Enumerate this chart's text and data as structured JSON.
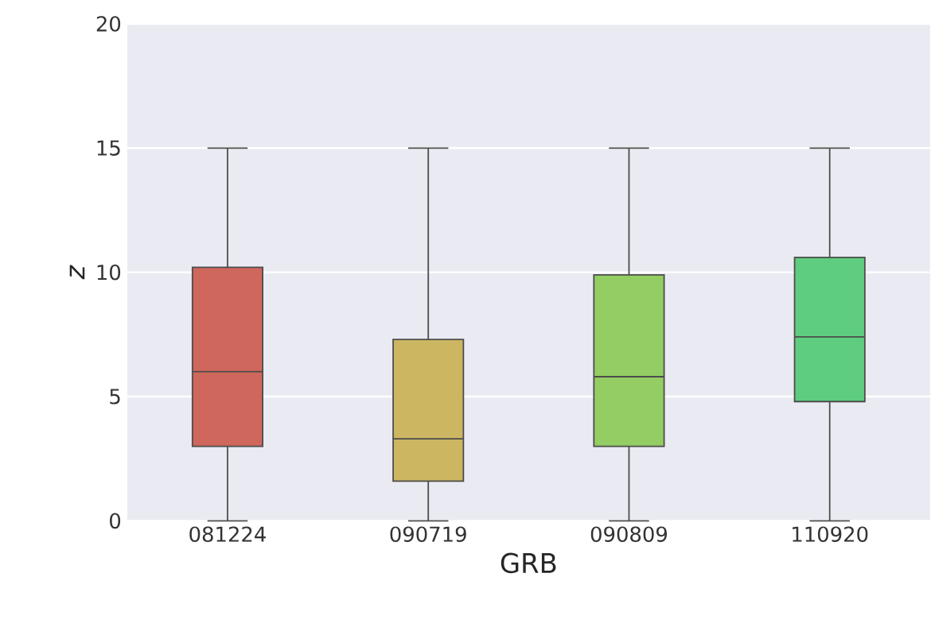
{
  "chart_data": {
    "type": "box",
    "xlabel": "GRB",
    "ylabel": "z",
    "categories": [
      "081224",
      "090719",
      "090809",
      "110920"
    ],
    "boxes": [
      {
        "low": 0,
        "q1": 3,
        "median": 6,
        "q3": 10.2,
        "high": 15
      },
      {
        "low": 0,
        "q1": 1.6,
        "median": 3.3,
        "q3": 7.3,
        "high": 15
      },
      {
        "low": 0,
        "q1": 3,
        "median": 5.8,
        "q3": 9.9,
        "high": 15
      },
      {
        "low": 0,
        "q1": 4.8,
        "median": 7.4,
        "q3": 10.6,
        "high": 15
      }
    ],
    "colors": [
      "#d0675d",
      "#ccb662",
      "#93cd63",
      "#5ecd80"
    ],
    "ylim": [
      0,
      20
    ],
    "yticks": [
      0,
      5,
      10,
      15,
      20
    ],
    "grid": "y"
  }
}
